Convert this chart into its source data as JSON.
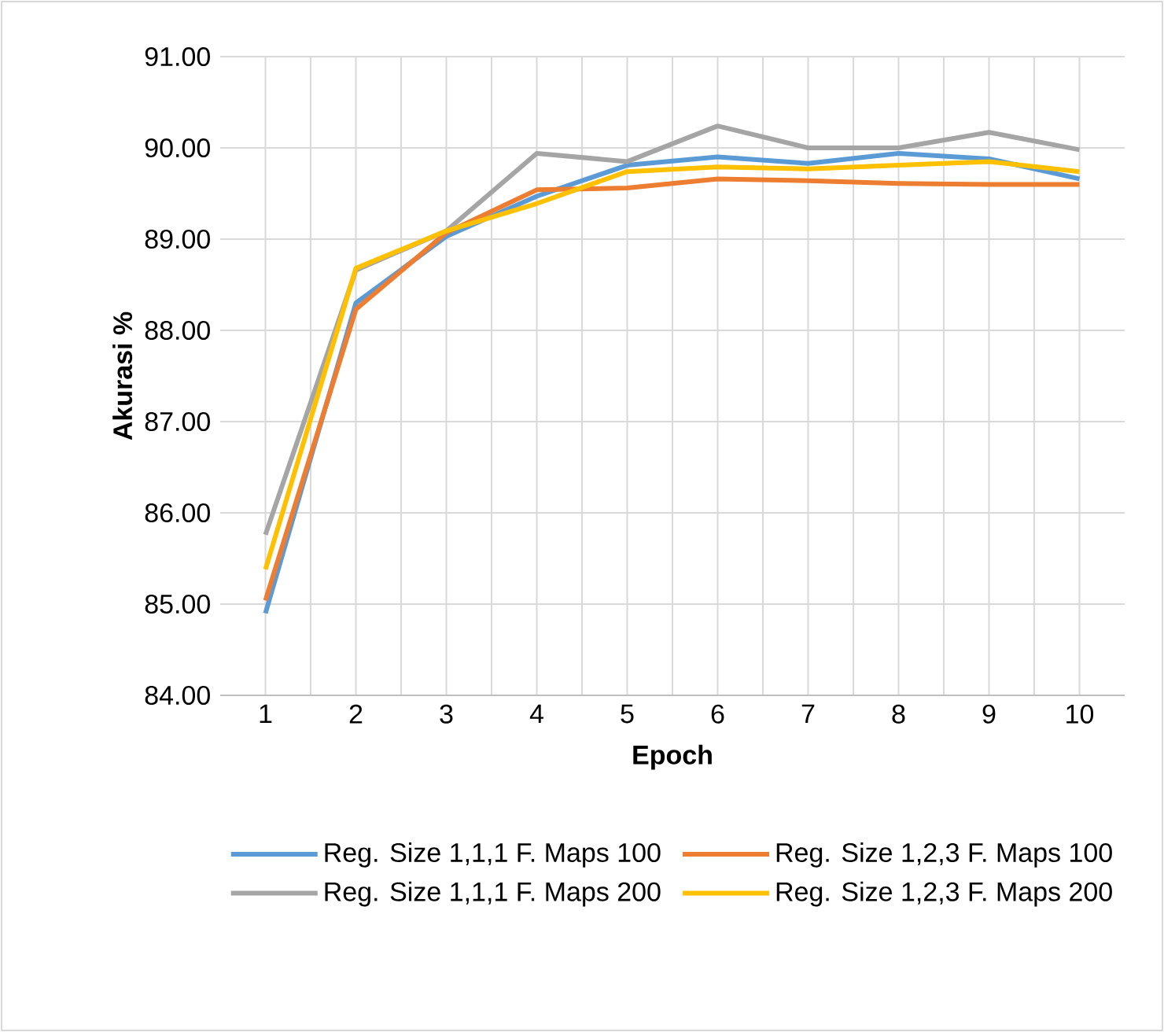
{
  "chart_data": {
    "type": "line",
    "xlabel": "Epoch",
    "ylabel": "Akurasi %",
    "categories": [
      "1",
      "2",
      "3",
      "4",
      "5",
      "6",
      "7",
      "8",
      "9",
      "10"
    ],
    "series": [
      {
        "name": "Reg. Size 1,1,1 F. Maps 100",
        "color": "#5b9bd5",
        "values": [
          84.9,
          88.3,
          89.03,
          89.47,
          89.81,
          89.9,
          89.83,
          89.94,
          89.88,
          89.66
        ]
      },
      {
        "name": "Reg. Size 1,2,3 F. Maps 100",
        "color": "#ed7d31",
        "values": [
          85.04,
          88.23,
          89.07,
          89.54,
          89.56,
          89.66,
          89.64,
          89.61,
          89.6,
          89.6
        ]
      },
      {
        "name": "Reg. Size 1,1,1 F. Maps 200",
        "color": "#a5a5a5",
        "values": [
          85.76,
          88.66,
          89.09,
          89.94,
          89.85,
          90.24,
          90.0,
          90.0,
          90.17,
          89.98
        ]
      },
      {
        "name": "Reg. Size 1,2,3 F. Maps 200",
        "color": "#ffc000",
        "values": [
          85.38,
          88.68,
          89.09,
          89.39,
          89.74,
          89.79,
          89.77,
          89.81,
          89.85,
          89.74
        ]
      }
    ],
    "ylim": [
      84,
      91
    ],
    "yticks": [
      {
        "value": 84,
        "label": "84.00"
      },
      {
        "value": 85,
        "label": "85.00"
      },
      {
        "value": 86,
        "label": "86.00"
      },
      {
        "value": 87,
        "label": "87.00"
      },
      {
        "value": 88,
        "label": "88.00"
      },
      {
        "value": 89,
        "label": "89.00"
      },
      {
        "value": 90,
        "label": "90.00"
      },
      {
        "value": 91,
        "label": "91.00"
      }
    ],
    "grid": true,
    "legend": "bottom",
    "marker": "none",
    "line_style": "solid"
  }
}
